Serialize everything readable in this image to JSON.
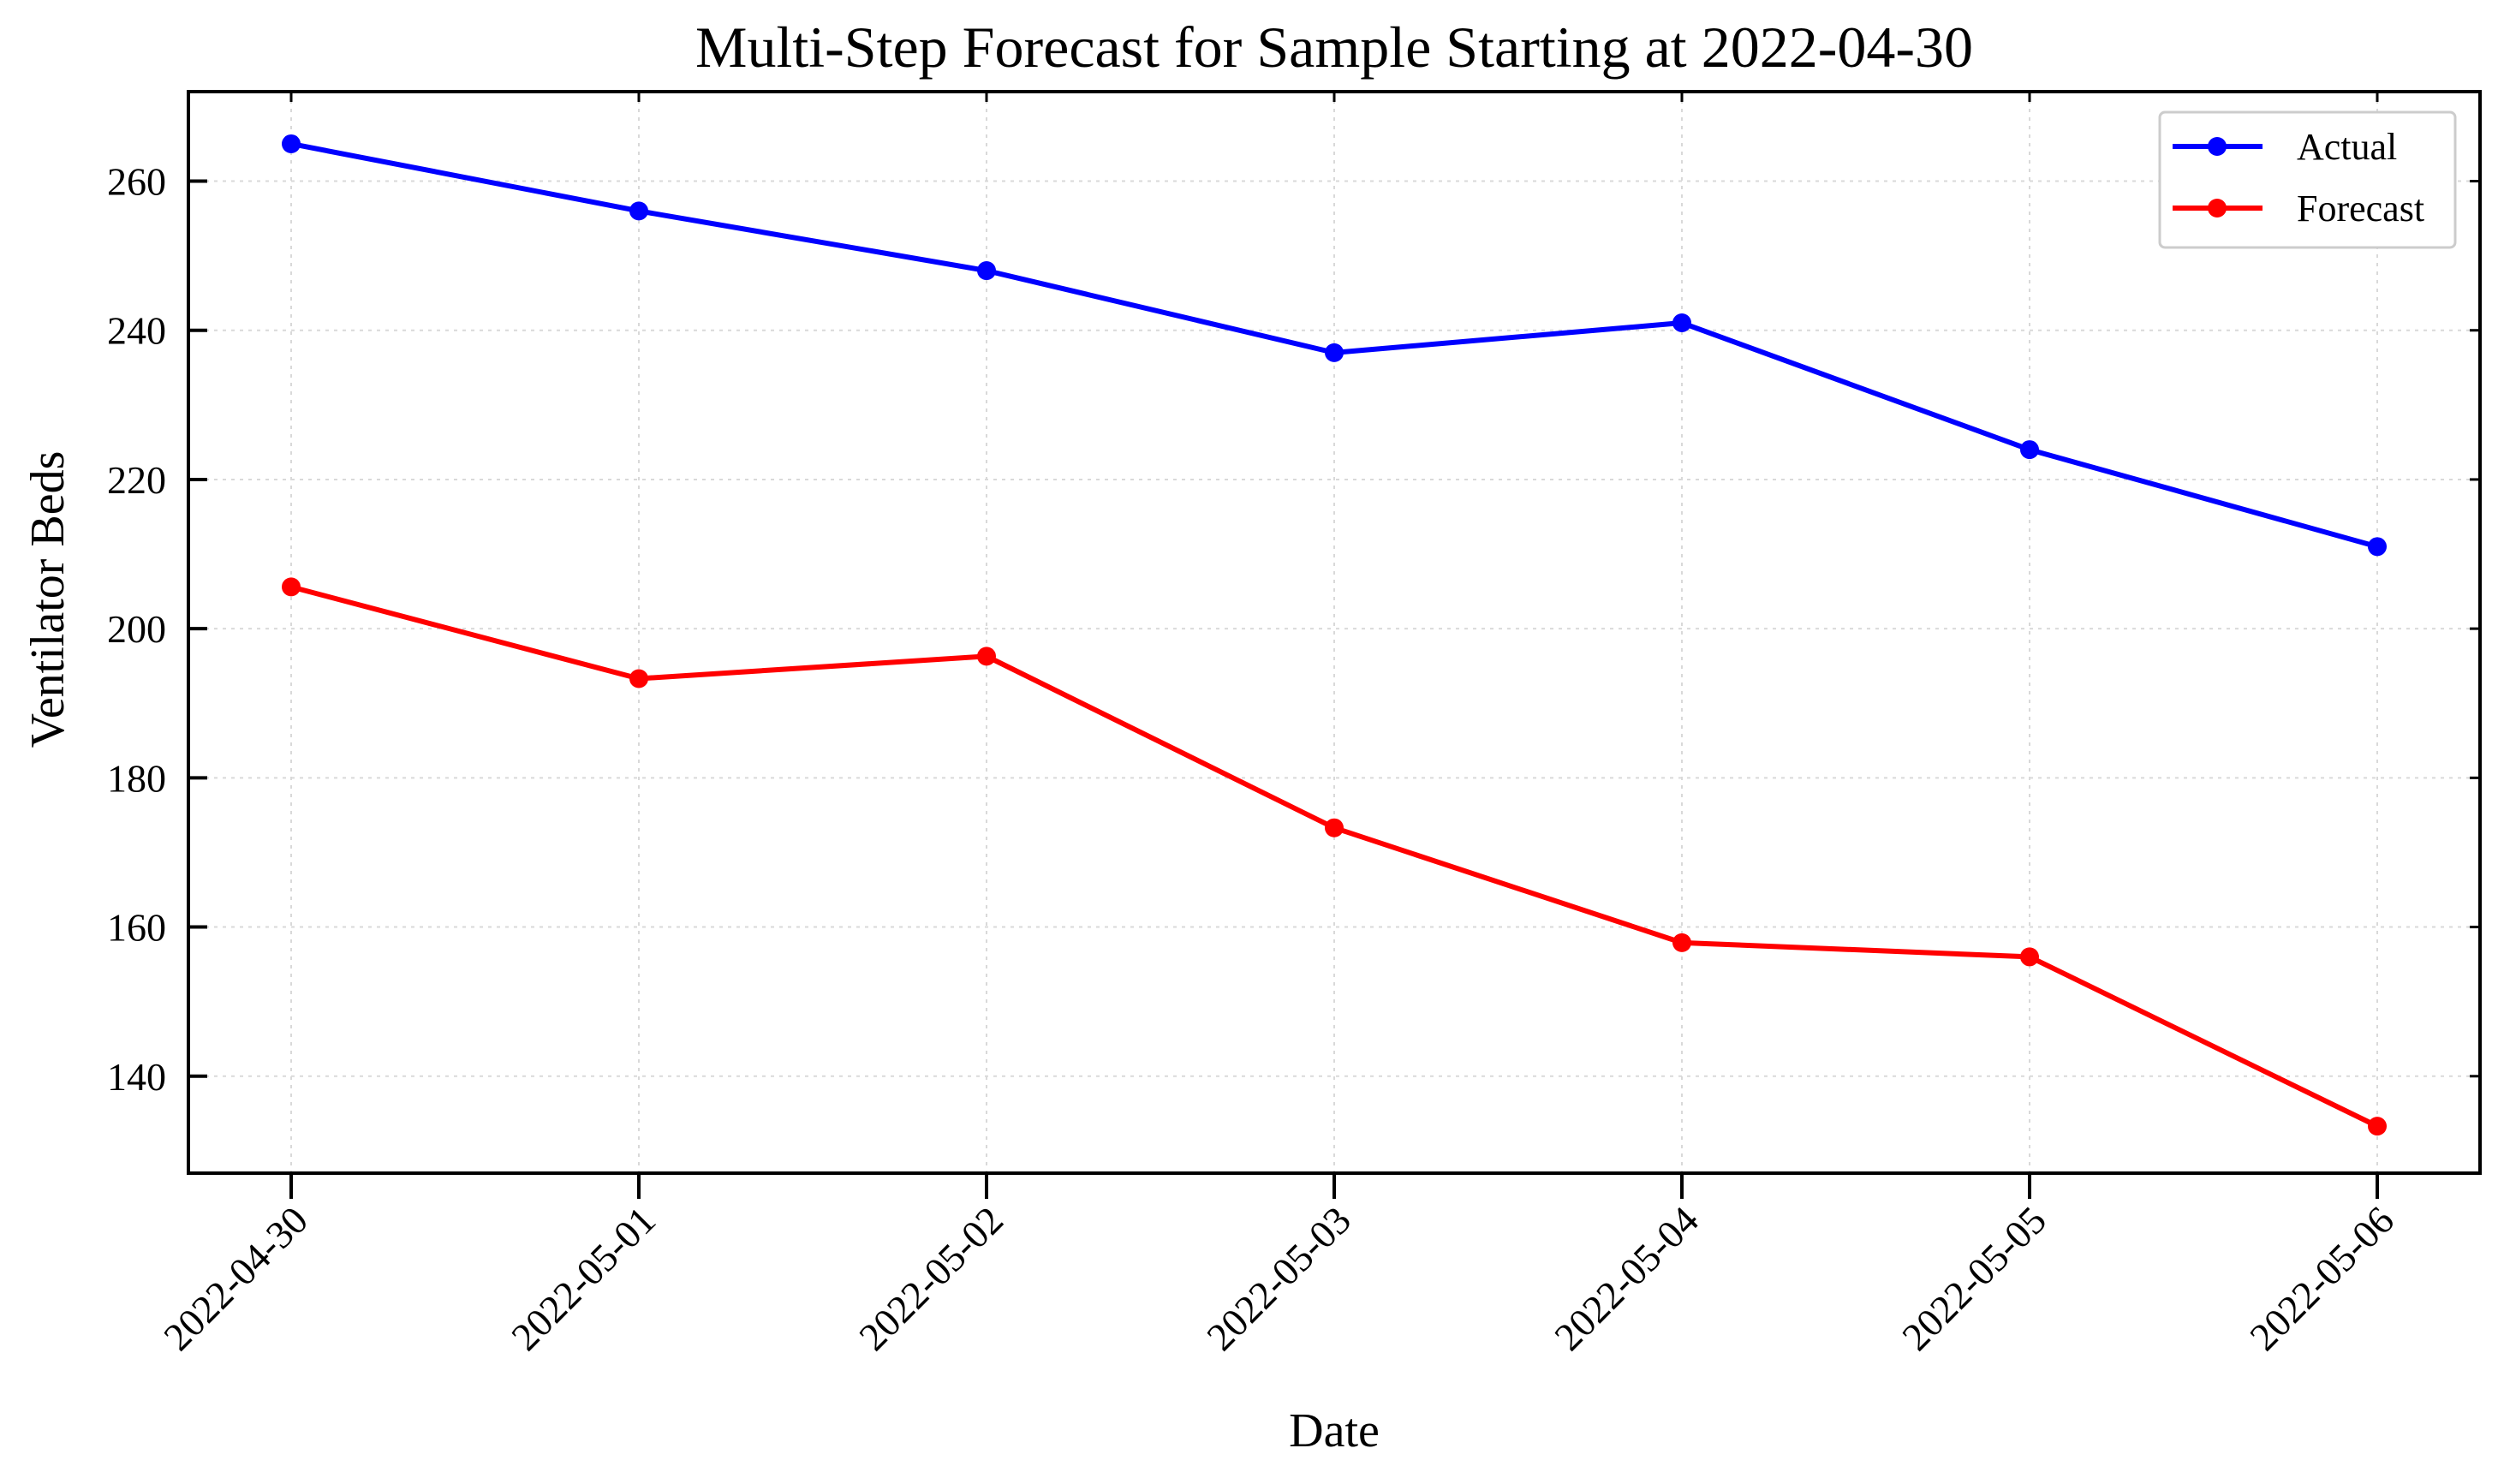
{
  "chart_data": {
    "type": "line",
    "title": "Multi-Step Forecast for Sample Starting at 2022-04-30",
    "xlabel": "Date",
    "ylabel": "Ventilator Beds",
    "categories": [
      "2022-04-30",
      "2022-05-01",
      "2022-05-02",
      "2022-05-03",
      "2022-05-04",
      "2022-05-05",
      "2022-05-06"
    ],
    "ylim": [
      127,
      272
    ],
    "yticks": [
      140,
      160,
      180,
      200,
      220,
      240,
      260
    ],
    "grid": true,
    "legend_position": "top-right",
    "series": [
      {
        "name": "Actual",
        "color": "#0000ff",
        "values": [
          265,
          256,
          248,
          237,
          241,
          224,
          211
        ]
      },
      {
        "name": "Forecast",
        "color": "#ff0000",
        "values": [
          205.6,
          193.3,
          196.3,
          173.3,
          157.9,
          156.0,
          133.3
        ]
      }
    ]
  }
}
